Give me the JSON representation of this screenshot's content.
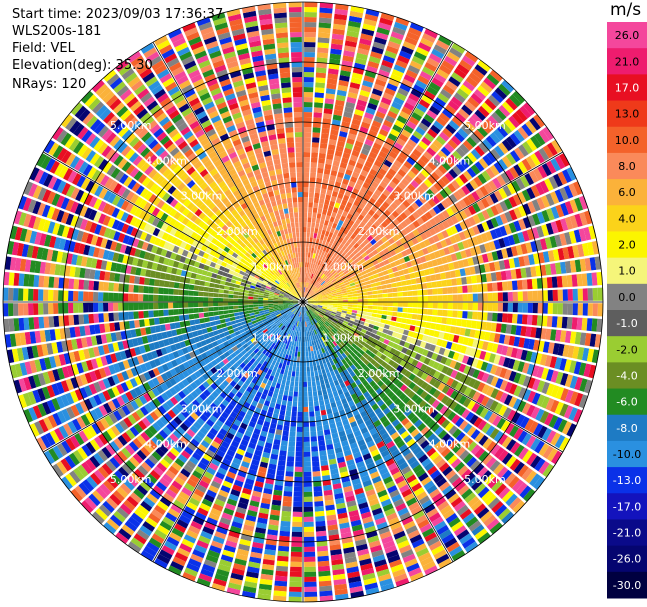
{
  "header": {
    "start_time": "Start time: 2023/09/03 17:36:37",
    "instrument": "WLS200s-181",
    "field": "Field: VEL",
    "elevation": "Elevation(deg): 35.30",
    "nrays": "NRays: 120"
  },
  "chart_data": {
    "type": "heatmap",
    "projection": "polar-ppi",
    "field": "VEL",
    "n_rays": 120,
    "max_range_km": 5.0,
    "range_rings_km": [
      1,
      2,
      3,
      4,
      5
    ],
    "radial_lines": 12,
    "ring_labels": [
      "1.00km",
      "2.00km",
      "3.00km",
      "4.00km",
      "5.00km"
    ],
    "colorbar": {
      "unit": "m/s",
      "tick_labels": [
        "26.0",
        "21.0",
        "17.0",
        "13.0",
        "10.0",
        "8.0",
        "6.0",
        "4.0",
        "2.0",
        "1.0",
        "0.0",
        "-1.0",
        "-2.0",
        "-4.0",
        "-6.0",
        "-8.0",
        "-10.0",
        "-13.0",
        "-17.0",
        "-21.0",
        "-26.0",
        "-30.0"
      ],
      "colors": [
        "#f4479c",
        "#ee1c6e",
        "#e80f22",
        "#ef3a1a",
        "#f4622a",
        "#fa8a5a",
        "#fbb23a",
        "#fbd31a",
        "#fcf500",
        "#f5f57a",
        "#828282",
        "#5e5e5e",
        "#9acd32",
        "#6b8e23",
        "#228b22",
        "#1e7bc4",
        "#2a90e0",
        "#0a31e8",
        "#1313bd",
        "#0a0a8a",
        "#050570",
        "#000040"
      ]
    },
    "velocity_pattern": "positive (toward north-east, orange/red) above the east-west line, negative (blue/green) below; values saturate to noise beyond about 3 km"
  }
}
